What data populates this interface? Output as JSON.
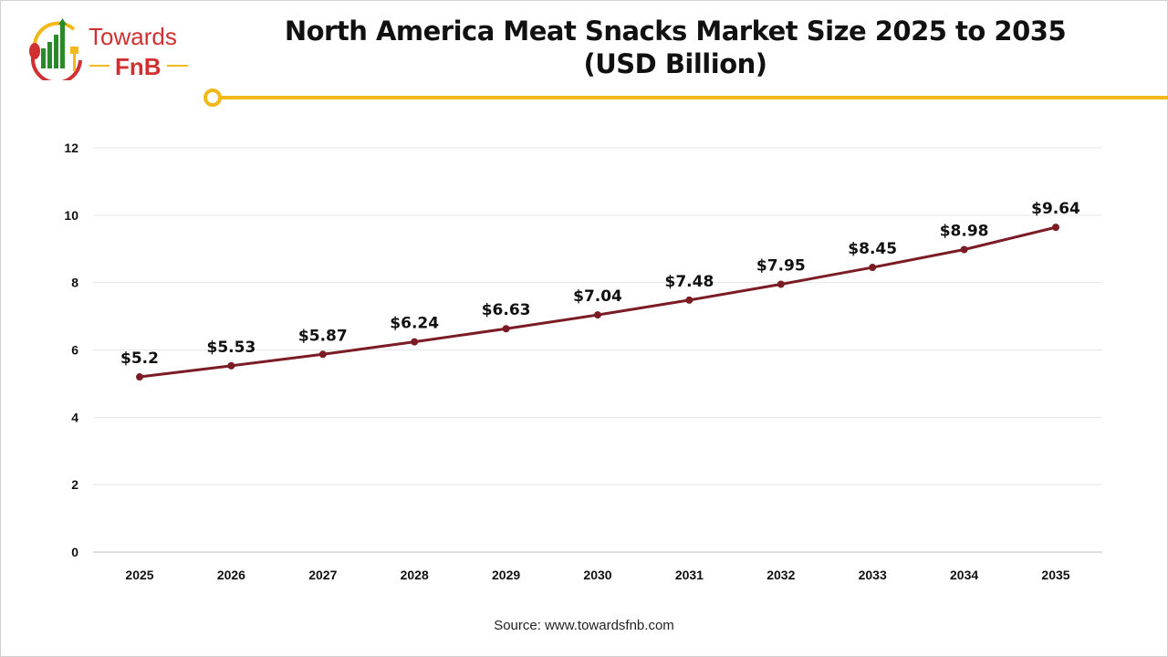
{
  "brand": {
    "logo_text_1": "Towards",
    "logo_text_2": "FnB"
  },
  "title_line1": "North America Meat Snacks Market Size 2025 to 2035",
  "title_line2": "(USD Billion)",
  "source": "Source: www.towardsfnb.com",
  "colors": {
    "line": "#7b1c24",
    "accent": "#f2b81c",
    "grid": "#e6e6e6"
  },
  "chart_data": {
    "type": "line",
    "title": "North America Meat Snacks Market Size 2025 to 2035 (USD Billion)",
    "categories": [
      "2025",
      "2026",
      "2027",
      "2028",
      "2029",
      "2030",
      "2031",
      "2032",
      "2033",
      "2034",
      "2035"
    ],
    "values": [
      5.2,
      5.53,
      5.87,
      6.24,
      6.63,
      7.04,
      7.48,
      7.95,
      8.45,
      8.98,
      9.64
    ],
    "data_labels": [
      "$5.2",
      "$5.53",
      "$5.87",
      "$6.24",
      "$6.63",
      "$7.04",
      "$7.48",
      "$7.95",
      "$8.45",
      "$8.98",
      "$9.64"
    ],
    "yticks": [
      "0",
      "2",
      "4",
      "6",
      "8",
      "10",
      "12"
    ],
    "ylim": [
      0,
      12
    ],
    "grid": true,
    "legend": "none"
  }
}
